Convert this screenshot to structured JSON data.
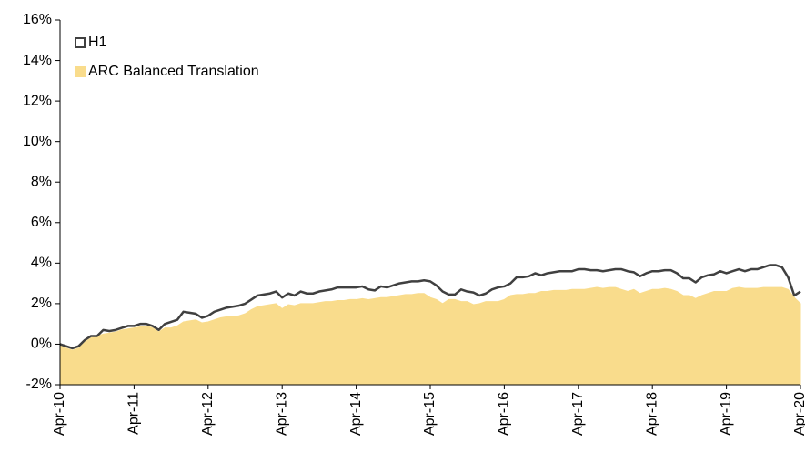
{
  "chart_data": {
    "type": "line-area",
    "categories": [
      "Apr-10",
      null,
      null,
      null,
      null,
      null,
      null,
      null,
      null,
      null,
      null,
      null,
      "Apr-11",
      null,
      null,
      null,
      null,
      null,
      null,
      null,
      null,
      null,
      null,
      null,
      "Apr-12",
      null,
      null,
      null,
      null,
      null,
      null,
      null,
      null,
      null,
      null,
      null,
      "Apr-13",
      null,
      null,
      null,
      null,
      null,
      null,
      null,
      null,
      null,
      null,
      null,
      "Apr-14",
      null,
      null,
      null,
      null,
      null,
      null,
      null,
      null,
      null,
      null,
      null,
      "Apr-15",
      null,
      null,
      null,
      null,
      null,
      null,
      null,
      null,
      null,
      null,
      null,
      "Apr-16",
      null,
      null,
      null,
      null,
      null,
      null,
      null,
      null,
      null,
      null,
      null,
      "Apr-17",
      null,
      null,
      null,
      null,
      null,
      null,
      null,
      null,
      null,
      null,
      null,
      "Apr-18",
      null,
      null,
      null,
      null,
      null,
      null,
      null,
      null,
      null,
      null,
      null,
      "Apr-19",
      null,
      null,
      null,
      null,
      null,
      null,
      null,
      null,
      null,
      null,
      null,
      "Apr-20"
    ],
    "series": [
      {
        "name": "H1",
        "kind": "line",
        "color": "#404040",
        "values": [
          0,
          -0.1,
          -0.2,
          -0.1,
          0.2,
          0.4,
          0.4,
          0.7,
          0.65,
          0.7,
          0.8,
          0.9,
          0.9,
          1.0,
          1.0,
          0.9,
          0.7,
          1.0,
          1.1,
          1.2,
          1.6,
          1.55,
          1.5,
          1.3,
          1.4,
          1.6,
          1.7,
          1.8,
          1.85,
          1.9,
          2.0,
          2.2,
          2.4,
          2.45,
          2.5,
          2.6,
          2.3,
          2.5,
          2.4,
          2.6,
          2.5,
          2.5,
          2.6,
          2.65,
          2.7,
          2.8,
          2.8,
          2.8,
          2.8,
          2.85,
          2.7,
          2.65,
          2.85,
          2.8,
          2.9,
          3.0,
          3.05,
          3.1,
          3.1,
          3.15,
          3.1,
          2.9,
          2.6,
          2.45,
          2.45,
          2.7,
          2.6,
          2.55,
          2.4,
          2.5,
          2.7,
          2.8,
          2.85,
          3.0,
          3.3,
          3.3,
          3.35,
          3.5,
          3.4,
          3.5,
          3.55,
          3.6,
          3.6,
          3.6,
          3.7,
          3.7,
          3.65,
          3.65,
          3.6,
          3.65,
          3.7,
          3.7,
          3.6,
          3.55,
          3.35,
          3.5,
          3.6,
          3.6,
          3.65,
          3.65,
          3.5,
          3.25,
          3.25,
          3.05,
          3.3,
          3.4,
          3.45,
          3.6,
          3.5,
          3.6,
          3.7,
          3.6,
          3.7,
          3.7,
          3.8,
          3.9,
          3.9,
          3.8,
          3.3,
          2.4,
          2.6
        ]
      },
      {
        "name": "ARC Balanced Translation",
        "kind": "area",
        "color": "#f9dc8c",
        "values": [
          0,
          -0.2,
          -0.3,
          -0.2,
          0.1,
          0.3,
          0.4,
          0.5,
          0.55,
          0.6,
          0.7,
          0.75,
          0.8,
          0.85,
          0.9,
          0.8,
          0.6,
          0.8,
          0.8,
          0.9,
          1.1,
          1.15,
          1.2,
          1.05,
          1.1,
          1.2,
          1.3,
          1.35,
          1.35,
          1.4,
          1.5,
          1.7,
          1.85,
          1.9,
          1.95,
          2.0,
          1.75,
          1.95,
          1.9,
          2.0,
          2.0,
          2.0,
          2.05,
          2.1,
          2.1,
          2.15,
          2.15,
          2.2,
          2.2,
          2.25,
          2.2,
          2.25,
          2.3,
          2.3,
          2.35,
          2.4,
          2.45,
          2.45,
          2.5,
          2.5,
          2.3,
          2.2,
          2.0,
          2.2,
          2.2,
          2.1,
          2.1,
          1.95,
          2.0,
          2.1,
          2.1,
          2.1,
          2.2,
          2.4,
          2.45,
          2.45,
          2.5,
          2.5,
          2.6,
          2.6,
          2.65,
          2.65,
          2.65,
          2.7,
          2.7,
          2.7,
          2.75,
          2.8,
          2.75,
          2.8,
          2.8,
          2.7,
          2.6,
          2.7,
          2.5,
          2.6,
          2.7,
          2.7,
          2.75,
          2.7,
          2.6,
          2.4,
          2.4,
          2.25,
          2.4,
          2.5,
          2.6,
          2.6,
          2.6,
          2.75,
          2.8,
          2.75,
          2.75,
          2.75,
          2.8,
          2.8,
          2.8,
          2.8,
          2.7,
          2.3,
          2.0
        ]
      }
    ],
    "ylim": [
      -2,
      16
    ],
    "yticks": [
      {
        "value": -2,
        "label": "-2%"
      },
      {
        "value": 0,
        "label": "0%"
      },
      {
        "value": 2,
        "label": "2%"
      },
      {
        "value": 4,
        "label": "4%"
      },
      {
        "value": 6,
        "label": "6%"
      },
      {
        "value": 8,
        "label": "8%"
      },
      {
        "value": 10,
        "label": "10%"
      },
      {
        "value": 12,
        "label": "12%"
      },
      {
        "value": 14,
        "label": "14%"
      },
      {
        "value": 16,
        "label": "16%"
      }
    ],
    "legend": "top-left"
  }
}
